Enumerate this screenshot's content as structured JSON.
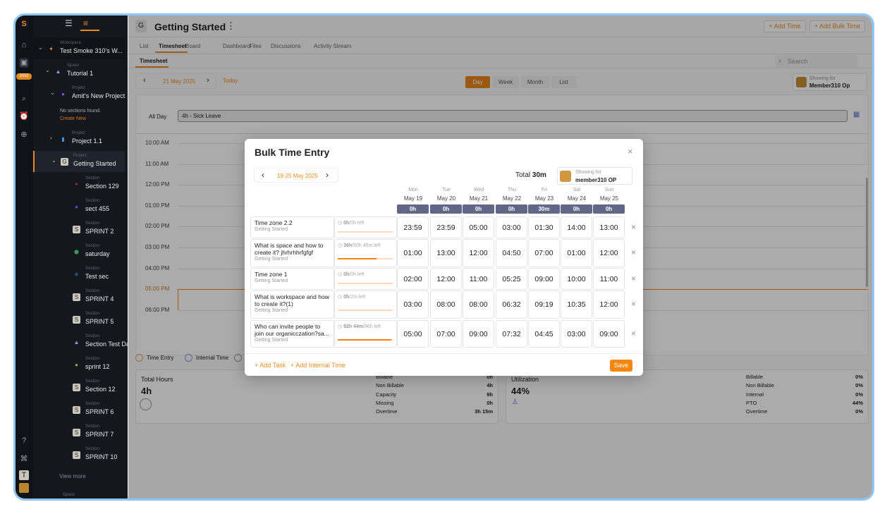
{
  "rail": {
    "badge": "2032",
    "avatar_letter": "T"
  },
  "sidebar": {
    "workspace": {
      "label": "Workspace",
      "name": "Test Smoke 310's W..."
    },
    "space": {
      "label": "Space",
      "name": "Tutorial 1"
    },
    "project1": {
      "label": "Project",
      "name": "Amit's New Project",
      "empty": "No sections found.",
      "create": "Create New"
    },
    "project2": {
      "label": "Project",
      "name": "Project 1.1"
    },
    "project3": {
      "label": "Project",
      "name": "Getting Started",
      "letter": "G"
    },
    "sections": [
      {
        "label": "Section",
        "name": "Section 129",
        "icon": "ball-icon"
      },
      {
        "label": "Section",
        "name": "sect 455",
        "icon": "planet-icon"
      },
      {
        "label": "Section",
        "name": "SPRINT 2",
        "icon": "S"
      },
      {
        "label": "Section",
        "name": "saturday",
        "icon": "shield-icon"
      },
      {
        "label": "Section",
        "name": "Test sec",
        "icon": "snowflake-icon"
      },
      {
        "label": "Section",
        "name": "SPRINT 4",
        "icon": "S"
      },
      {
        "label": "Section",
        "name": "SPRINT 5",
        "icon": "S"
      },
      {
        "label": "Section",
        "name": "Section Test Dash",
        "icon": "rocket-icon"
      },
      {
        "label": "Section",
        "name": "sprint 12",
        "icon": "corn-icon"
      },
      {
        "label": "Section",
        "name": "Section 12",
        "icon": "S"
      },
      {
        "label": "Section",
        "name": "SPRINT 6",
        "icon": "S"
      },
      {
        "label": "Section",
        "name": "SPRINT 7",
        "icon": "S"
      },
      {
        "label": "Section",
        "name": "SPRINT 10",
        "icon": "S"
      }
    ],
    "view_more": "View more",
    "bottom_space_label": "Space"
  },
  "header": {
    "letter": "G",
    "title": "Getting Started",
    "add_time": "+ Add Time",
    "add_bulk_time": "+ Add Bulk Time"
  },
  "tabs": [
    "List",
    "Timesheet",
    "Board",
    "Dashboard",
    "Files",
    "Discussions",
    "Activity Stream"
  ],
  "active_tab": "Timesheet",
  "subtab": "Timesheet",
  "search_placeholder": "Search",
  "toolbar": {
    "date": "21 May 2025",
    "today": "Today",
    "views": [
      "Day",
      "Week",
      "Month",
      "List"
    ],
    "active_view": "Day",
    "showing_for": "Showing for",
    "member": "Member310 Op"
  },
  "allday": {
    "label": "All Day",
    "entry": "4h - Sick Leave"
  },
  "hours": [
    "10:00 AM",
    "11:00 AM",
    "12:00 PM",
    "01:00 PM",
    "02:00 PM",
    "03:00 PM",
    "04:00 PM",
    "05:00 PM",
    "06:00 PM"
  ],
  "current_hour": "05:00 PM",
  "legend": [
    "Time Entry",
    "Internal Time"
  ],
  "total_hours": {
    "title": "Total Hours",
    "value": "4h",
    "rows": [
      [
        "Billable",
        "0h"
      ],
      [
        "Non Billable",
        "4h"
      ],
      [
        "Capacity",
        "9h"
      ],
      [
        "Missing",
        "0h"
      ],
      [
        "Overtime",
        "3h 15m"
      ]
    ]
  },
  "utilization": {
    "title": "Utilization",
    "value": "44%",
    "rows": [
      [
        "Billable",
        "0%"
      ],
      [
        "Non Billable",
        "0%"
      ],
      [
        "Internal",
        "0%"
      ],
      [
        "PTO",
        "44%"
      ],
      [
        "Overtime",
        "0%"
      ]
    ]
  },
  "modal": {
    "title": "Bulk Time Entry",
    "range": "19-25 May 2025",
    "total_label": "Total",
    "total": "30m",
    "showing_for": "Showing for",
    "member": "member310 OP",
    "days": [
      {
        "d": "Mon",
        "date": "May 19",
        "t": "0h"
      },
      {
        "d": "Tue",
        "date": "May 20",
        "t": "0h"
      },
      {
        "d": "Wed",
        "date": "May 21",
        "t": "0h"
      },
      {
        "d": "Thu",
        "date": "May 22",
        "t": "0h"
      },
      {
        "d": "Fri",
        "date": "May 23",
        "t": "30m"
      },
      {
        "d": "Sat",
        "date": "May 24",
        "t": "0h"
      },
      {
        "d": "Sun",
        "date": "May 25",
        "t": "0h"
      }
    ],
    "rows": [
      {
        "task": "Time zone 2.2",
        "project": "Getting Started",
        "spent": "0h",
        "left": "/0h left",
        "progress": 0,
        "times": [
          "23:59",
          "23:59",
          "05:00",
          "03:00",
          "01:30",
          "14:00",
          "13:00"
        ]
      },
      {
        "task": "What is space and how to create it? jhrhrhhrfgfgf",
        "project": "Getting Started",
        "spent": "36h",
        "left": "/50h 45m left",
        "progress": 0.71,
        "times": [
          "01:00",
          "13:00",
          "12:00",
          "04:50",
          "07:00",
          "01:00",
          "12:00"
        ]
      },
      {
        "task": "Time zone 1",
        "project": "Getting Started",
        "spent": "0h",
        "left": "/0h left",
        "progress": 0,
        "times": [
          "02:00",
          "12:00",
          "11:00",
          "05:25",
          "09:00",
          "10:00",
          "11:00"
        ]
      },
      {
        "task": "What is workspace and how to create it?(1)",
        "project": "Getting Started",
        "spent": "0h",
        "left": "/2m left",
        "progress": 0,
        "times": [
          "03:00",
          "08:00",
          "08:00",
          "06:32",
          "09:19",
          "10:35",
          "12:00"
        ]
      },
      {
        "task": "Who can invite people to join our organicczation?sa...",
        "project": "Getting Started",
        "spent": "92h 44m",
        "left": "/96h left",
        "progress": 0.97,
        "times": [
          "05:00",
          "07:00",
          "09:00",
          "07:32",
          "04:45",
          "03:00",
          "09:00"
        ]
      }
    ],
    "add_task": "+ Add Task",
    "add_internal": "+ Add Internal Time",
    "save": "Save"
  },
  "colors": {
    "accent": "#f08a1e",
    "pill": "#626787",
    "sidebar": "#14181e"
  }
}
